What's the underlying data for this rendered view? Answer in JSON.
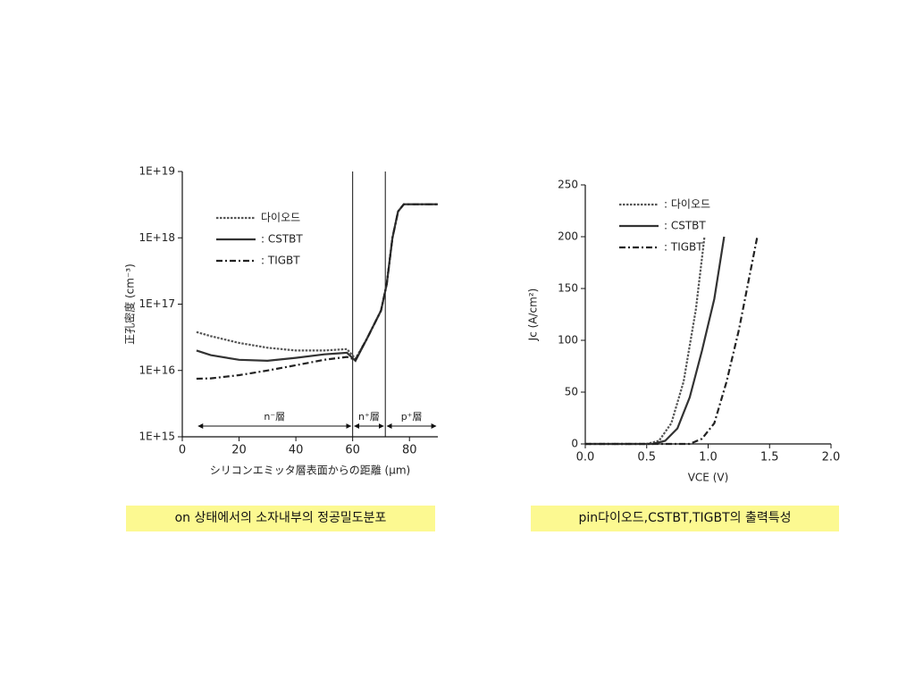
{
  "chart_data": [
    {
      "type": "line",
      "log_y": true,
      "xlabel": "シリコンエミッタ層表面からの距離 (μm)",
      "ylabel": "正孔密度 (cm⁻³)",
      "xlim": [
        0,
        90
      ],
      "xticks": [
        0,
        20,
        40,
        60,
        80
      ],
      "ylim": [
        1000000000000000.0,
        1e+19
      ],
      "yticks": [
        {
          "value": 1000000000000000.0,
          "label": "1E+15"
        },
        {
          "value": 1e+16,
          "label": "1E+16"
        },
        {
          "value": 1e+17,
          "label": "1E+17"
        },
        {
          "value": 1e+18,
          "label": "1E+18"
        },
        {
          "value": 1e+19,
          "label": "1E+19"
        }
      ],
      "legend": "upper left",
      "regions": [
        {
          "label": "n⁻層",
          "from": 5,
          "to": 60
        },
        {
          "label": "n⁺層",
          "from": 60,
          "to": 71.5
        },
        {
          "label": "p⁺層",
          "from": 71.5,
          "to": 90
        }
      ],
      "series": [
        {
          "name": "다이오드",
          "color": "#555555",
          "style": "dotted",
          "x": [
            5,
            10,
            20,
            30,
            40,
            50,
            58,
            61,
            65,
            70,
            72,
            74,
            76,
            78,
            90
          ],
          "values": [
            3.8e+16,
            3.3e+16,
            2.6e+16,
            2.2e+16,
            2e+16,
            2e+16,
            2.1e+16,
            1.5e+16,
            3e+16,
            8e+16,
            2e+17,
            1e+18,
            2.5e+18,
            3.2e+18,
            3.2e+18
          ]
        },
        {
          "name": ": CSTBT",
          "color": "#333333",
          "style": "solid",
          "x": [
            5,
            10,
            20,
            30,
            40,
            50,
            58,
            61,
            65,
            70,
            72,
            74,
            76,
            78,
            90
          ],
          "values": [
            2e+16,
            1.7e+16,
            1.45e+16,
            1.4e+16,
            1.55e+16,
            1.75e+16,
            1.85e+16,
            1.4e+16,
            3e+16,
            8e+16,
            2e+17,
            1e+18,
            2.5e+18,
            3.2e+18,
            3.2e+18
          ]
        },
        {
          "name": ": TIGBT",
          "color": "#222222",
          "style": "dashdot",
          "x": [
            5,
            10,
            20,
            30,
            40,
            50,
            58,
            61,
            65,
            70,
            72,
            74,
            76,
            78,
            90
          ],
          "values": [
            7500000000000000.0,
            7600000000000000.0,
            8500000000000000.0,
            1e+16,
            1.2e+16,
            1.45e+16,
            1.6e+16,
            1.45e+16,
            3e+16,
            8e+16,
            2e+17,
            1e+18,
            2.5e+18,
            3.2e+18,
            3.2e+18
          ]
        }
      ],
      "caption": "on 상태에서의 소자내부의 정공밀도분포"
    },
    {
      "type": "line",
      "xlabel": "VCE (V)",
      "ylabel": "Jc (A/cm²)",
      "xlim": [
        0,
        2
      ],
      "xticks": [
        {
          "value": 0,
          "label": "0.0"
        },
        0.5,
        {
          "value": 1,
          "label": "1.0"
        },
        1.5,
        {
          "value": 2,
          "label": "2.0"
        }
      ],
      "ylim": [
        0,
        250
      ],
      "yticks": [
        0,
        50,
        100,
        150,
        200,
        250
      ],
      "legend": "upper left",
      "series": [
        {
          "name": ":  다이오드",
          "color": "#555555",
          "style": "dotted",
          "x": [
            0,
            0.5,
            0.6,
            0.7,
            0.8,
            0.9,
            0.97
          ],
          "values": [
            0,
            0,
            3,
            20,
            60,
            130,
            200
          ]
        },
        {
          "name": ": CSTBT",
          "color": "#333333",
          "style": "solid",
          "x": [
            0,
            0.55,
            0.65,
            0.75,
            0.85,
            0.95,
            1.05,
            1.13
          ],
          "values": [
            0,
            0,
            3,
            15,
            45,
            90,
            140,
            200
          ]
        },
        {
          "name": ": TIGBT",
          "color": "#222222",
          "style": "dashdot",
          "x": [
            0,
            0.85,
            0.95,
            1.05,
            1.15,
            1.25,
            1.35,
            1.4
          ],
          "values": [
            0,
            0,
            5,
            20,
            60,
            110,
            170,
            200
          ]
        }
      ],
      "caption": "pin다이오드,CSTBT,TIGBT의 출력특성"
    }
  ]
}
